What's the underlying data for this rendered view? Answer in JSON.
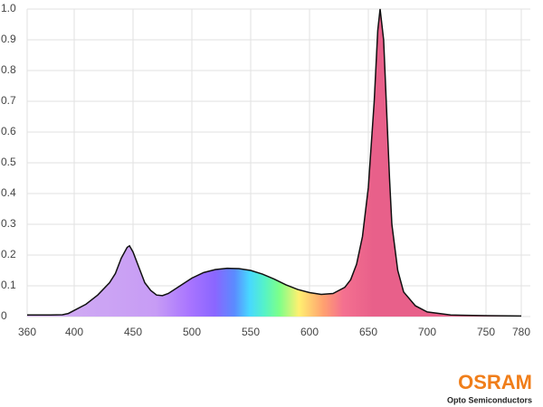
{
  "chart_data": {
    "type": "area",
    "x": [
      360,
      370,
      380,
      390,
      395,
      400,
      410,
      420,
      430,
      435,
      440,
      445,
      447,
      450,
      455,
      460,
      465,
      470,
      475,
      480,
      490,
      500,
      510,
      520,
      530,
      540,
      550,
      560,
      570,
      580,
      590,
      600,
      610,
      620,
      630,
      635,
      640,
      645,
      650,
      655,
      658,
      660,
      663,
      665,
      668,
      670,
      675,
      680,
      690,
      700,
      720,
      750,
      780
    ],
    "series": [
      {
        "color": "#111111",
        "values": [
          0.005,
          0.005,
          0.005,
          0.006,
          0.01,
          0.02,
          0.04,
          0.07,
          0.11,
          0.14,
          0.19,
          0.225,
          0.23,
          0.21,
          0.16,
          0.11,
          0.085,
          0.07,
          0.068,
          0.075,
          0.1,
          0.125,
          0.143,
          0.153,
          0.157,
          0.156,
          0.15,
          0.138,
          0.122,
          0.103,
          0.088,
          0.078,
          0.072,
          0.075,
          0.095,
          0.12,
          0.17,
          0.26,
          0.42,
          0.7,
          0.93,
          1.0,
          0.9,
          0.72,
          0.45,
          0.3,
          0.15,
          0.08,
          0.035,
          0.015,
          0.005,
          0.003,
          0.002
        ]
      }
    ],
    "xlim": [
      360,
      780
    ],
    "xticks": [
      360,
      400,
      450,
      500,
      550,
      600,
      650,
      700,
      750,
      780
    ],
    "ylim": [
      0,
      1
    ],
    "yticks": [
      0,
      0.1,
      0.2,
      0.3,
      0.4,
      0.5,
      0.6,
      0.7,
      0.8,
      0.9,
      {
        "value": 1,
        "label": "1.0"
      }
    ],
    "grid": true
  },
  "logo": {
    "name": "OSRAM",
    "tagline": "Opto Semiconductors"
  }
}
